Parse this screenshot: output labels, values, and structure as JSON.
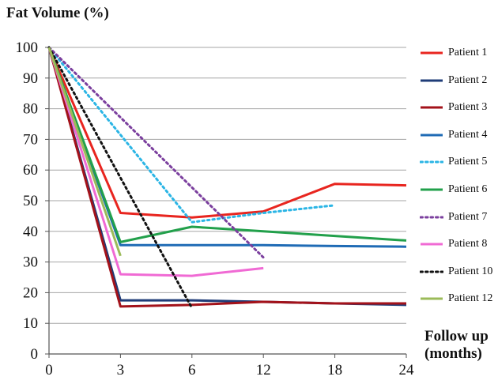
{
  "chart_data": {
    "type": "line",
    "ylabel": "Fat Volume (%)",
    "xlabel": "Follow up (months)",
    "xlabel_lines": [
      "Follow up",
      "(months)"
    ],
    "x_ticks": [
      0,
      3,
      6,
      12,
      18,
      24
    ],
    "y_ticks": [
      0,
      10,
      20,
      30,
      40,
      50,
      60,
      70,
      80,
      90,
      100
    ],
    "ylim": [
      0,
      100
    ],
    "grid": "horizontal",
    "legend_position": "right",
    "series": [
      {
        "name": "Patient 1",
        "color": "#e8251f",
        "style": "solid",
        "points": [
          [
            0,
            100
          ],
          [
            3,
            46
          ],
          [
            6,
            44.5
          ],
          [
            12,
            46.5
          ],
          [
            18,
            55.5
          ],
          [
            24,
            55
          ]
        ]
      },
      {
        "name": "Patient 2",
        "color": "#1f3c78",
        "style": "solid",
        "points": [
          [
            0,
            100
          ],
          [
            3,
            17.5
          ],
          [
            6,
            17.5
          ],
          [
            12,
            17
          ],
          [
            18,
            16.5
          ],
          [
            24,
            16
          ]
        ]
      },
      {
        "name": "Patient 3",
        "color": "#a3121a",
        "style": "solid",
        "points": [
          [
            0,
            100
          ],
          [
            3,
            15.5
          ],
          [
            6,
            16
          ],
          [
            12,
            17
          ],
          [
            18,
            16.5
          ],
          [
            24,
            16.5
          ]
        ]
      },
      {
        "name": "Patient 4",
        "color": "#1f6bb5",
        "style": "solid",
        "points": [
          [
            0,
            100
          ],
          [
            3,
            35.5
          ],
          [
            6,
            35.5
          ],
          [
            12,
            35.5
          ],
          [
            18,
            35.2
          ],
          [
            24,
            35
          ]
        ]
      },
      {
        "name": "Patient 5",
        "color": "#2bb5e5",
        "style": "dotted",
        "points": [
          [
            0,
            100
          ],
          [
            6,
            43
          ],
          [
            12,
            46
          ],
          [
            18,
            48.5
          ]
        ]
      },
      {
        "name": "Patient 6",
        "color": "#22a04b",
        "style": "solid",
        "points": [
          [
            0,
            100
          ],
          [
            3,
            36.5
          ],
          [
            6,
            41.5
          ],
          [
            12,
            40
          ],
          [
            18,
            38.5
          ],
          [
            24,
            37
          ]
        ]
      },
      {
        "name": "Patient 7",
        "color": "#7b3f9e",
        "style": "dotted",
        "points": [
          [
            0,
            100
          ],
          [
            12,
            31.5
          ]
        ]
      },
      {
        "name": "Patient 8",
        "color": "#f06ad4",
        "style": "solid",
        "points": [
          [
            0,
            100
          ],
          [
            3,
            26
          ],
          [
            6,
            25.5
          ],
          [
            12,
            28
          ]
        ]
      },
      {
        "name": "Patient 10",
        "color": "#111111",
        "style": "dotted",
        "points": [
          [
            0,
            100
          ],
          [
            6,
            15
          ]
        ]
      },
      {
        "name": "Patient 12",
        "color": "#9bbb59",
        "style": "solid",
        "points": [
          [
            0,
            100
          ],
          [
            3,
            32
          ]
        ]
      }
    ]
  }
}
